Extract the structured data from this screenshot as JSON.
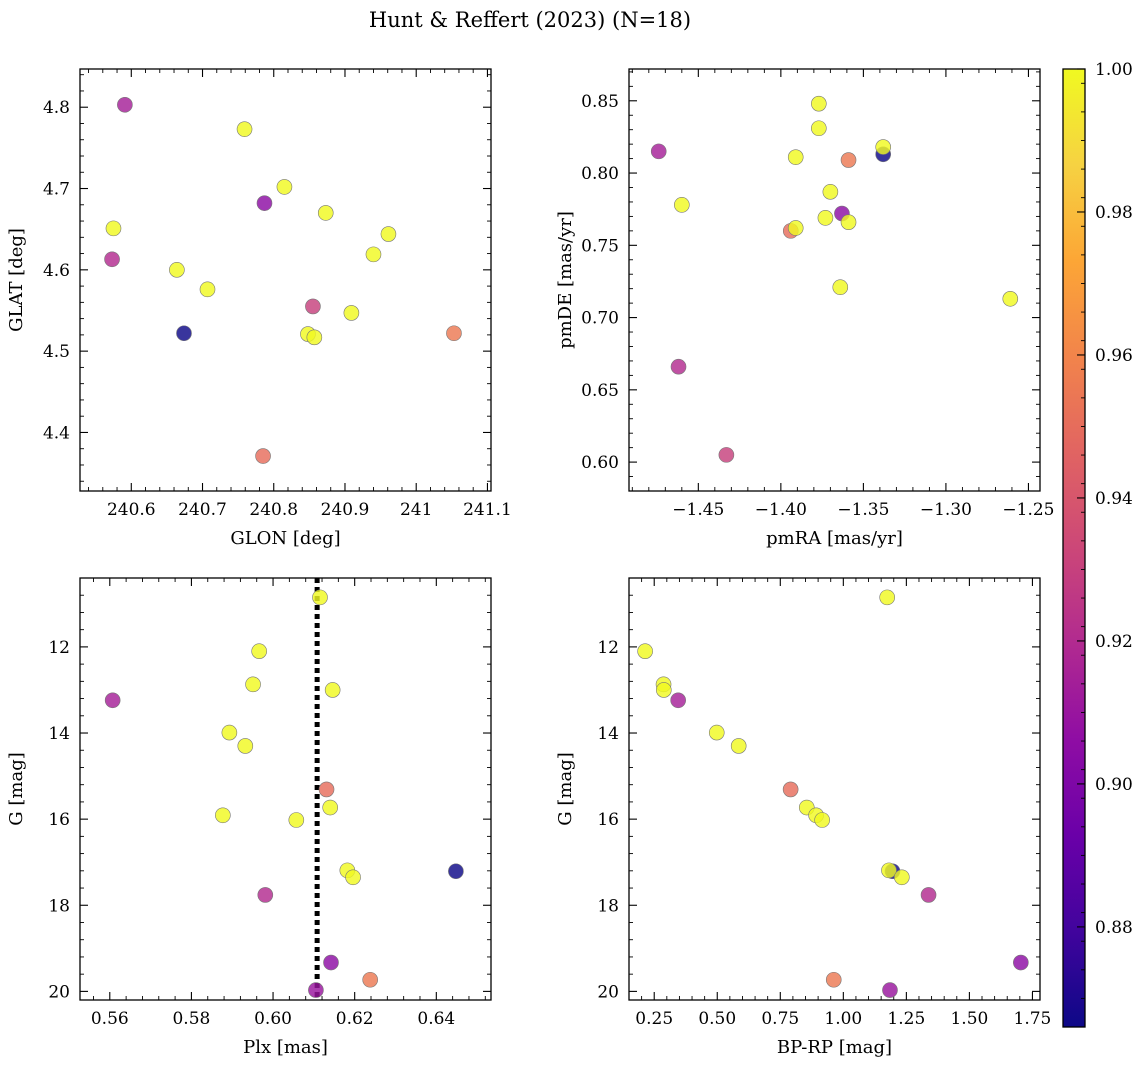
{
  "figure": {
    "title": "Hunt & Reffert (2023) (N=18)"
  },
  "colormap": {
    "name": "plasma",
    "range": [
      0.866,
      1.0
    ],
    "ticks": [
      0.88,
      0.9,
      0.92,
      0.94,
      0.96,
      0.98,
      1.0
    ]
  },
  "chart_data": [
    {
      "type": "scatter",
      "xlabel": "GLON [deg]",
      "ylabel": "GLAT [deg]",
      "xlim": [
        240.528,
        241.105
      ],
      "ylim": [
        4.328,
        4.847
      ],
      "y_inverted": false,
      "xticks": [
        240.6,
        240.7,
        240.8,
        240.9,
        241.0,
        241.1
      ],
      "yticks": [
        4.4,
        4.5,
        4.6,
        4.7,
        4.8
      ],
      "points": [
        {
          "x": 240.591,
          "y": 4.803,
          "c": 0.915
        },
        {
          "x": 240.575,
          "y": 4.651,
          "c": 1.0
        },
        {
          "x": 240.573,
          "y": 4.613,
          "c": 0.92
        },
        {
          "x": 240.664,
          "y": 4.6,
          "c": 1.0
        },
        {
          "x": 240.674,
          "y": 4.522,
          "c": 0.866
        },
        {
          "x": 240.707,
          "y": 4.576,
          "c": 1.0
        },
        {
          "x": 240.759,
          "y": 4.773,
          "c": 1.0
        },
        {
          "x": 240.787,
          "y": 4.682,
          "c": 0.905
        },
        {
          "x": 240.785,
          "y": 4.371,
          "c": 0.95
        },
        {
          "x": 240.815,
          "y": 4.702,
          "c": 1.0
        },
        {
          "x": 240.873,
          "y": 4.67,
          "c": 1.0
        },
        {
          "x": 240.855,
          "y": 4.555,
          "c": 0.93
        },
        {
          "x": 240.848,
          "y": 4.521,
          "c": 1.0
        },
        {
          "x": 240.857,
          "y": 4.517,
          "c": 1.0
        },
        {
          "x": 240.909,
          "y": 4.547,
          "c": 1.0
        },
        {
          "x": 240.94,
          "y": 4.619,
          "c": 1.0
        },
        {
          "x": 240.961,
          "y": 4.644,
          "c": 1.0
        },
        {
          "x": 241.053,
          "y": 4.522,
          "c": 0.955
        }
      ]
    },
    {
      "type": "scatter",
      "xlabel": "pmRA [mas/yr]",
      "ylabel": "pmDE [mas/yr]",
      "xlim": [
        -1.492,
        -1.243
      ],
      "ylim": [
        0.58,
        0.872
      ],
      "y_inverted": false,
      "xticks": [
        -1.45,
        -1.4,
        -1.35,
        -1.3,
        -1.25
      ],
      "xtick_labels": [
        "−1.45",
        "−1.40",
        "−1.35",
        "−1.30",
        "−1.25"
      ],
      "yticks": [
        0.6,
        0.65,
        0.7,
        0.75,
        0.8,
        0.85
      ],
      "ytick_labels": [
        "0.60",
        "0.65",
        "0.70",
        "0.75",
        "0.80",
        "0.85"
      ],
      "points": [
        {
          "x": -1.474,
          "y": 0.815,
          "c": 0.915
        },
        {
          "x": -1.46,
          "y": 0.778,
          "c": 1.0
        },
        {
          "x": -1.462,
          "y": 0.666,
          "c": 0.92
        },
        {
          "x": -1.433,
          "y": 0.605,
          "c": 0.93
        },
        {
          "x": -1.394,
          "y": 0.76,
          "c": 0.95
        },
        {
          "x": -1.391,
          "y": 0.811,
          "c": 1.0
        },
        {
          "x": -1.391,
          "y": 0.762,
          "c": 1.0
        },
        {
          "x": -1.377,
          "y": 0.848,
          "c": 1.0
        },
        {
          "x": -1.377,
          "y": 0.831,
          "c": 1.0
        },
        {
          "x": -1.373,
          "y": 0.769,
          "c": 1.0
        },
        {
          "x": -1.37,
          "y": 0.787,
          "c": 1.0
        },
        {
          "x": -1.364,
          "y": 0.721,
          "c": 1.0
        },
        {
          "x": -1.363,
          "y": 0.772,
          "c": 0.905
        },
        {
          "x": -1.359,
          "y": 0.766,
          "c": 1.0
        },
        {
          "x": -1.359,
          "y": 0.809,
          "c": 0.955
        },
        {
          "x": -1.338,
          "y": 0.813,
          "c": 0.866
        },
        {
          "x": -1.338,
          "y": 0.818,
          "c": 1.0
        },
        {
          "x": -1.261,
          "y": 0.713,
          "c": 1.0
        }
      ]
    },
    {
      "type": "scatter",
      "xlabel": "Plx [mas]",
      "ylabel": "G [mag]",
      "xlim": [
        0.5527,
        0.6534
      ],
      "ylim": [
        10.4,
        20.2
      ],
      "y_inverted": true,
      "xticks": [
        0.56,
        0.58,
        0.6,
        0.62,
        0.64
      ],
      "xtick_labels": [
        "0.56",
        "0.58",
        "0.60",
        "0.62",
        "0.64"
      ],
      "yticks": [
        12,
        14,
        16,
        18,
        20
      ],
      "vline": {
        "x": 0.6108,
        "style": "dotted",
        "color": "#000000"
      },
      "points": [
        {
          "x": 0.6115,
          "y": 10.85,
          "c": 1.0
        },
        {
          "x": 0.5966,
          "y": 12.1,
          "c": 1.0
        },
        {
          "x": 0.5951,
          "y": 12.87,
          "c": 1.0
        },
        {
          "x": 0.6146,
          "y": 13.0,
          "c": 1.0
        },
        {
          "x": 0.5607,
          "y": 13.24,
          "c": 0.915
        },
        {
          "x": 0.5893,
          "y": 13.99,
          "c": 1.0
        },
        {
          "x": 0.5932,
          "y": 14.3,
          "c": 1.0
        },
        {
          "x": 0.6131,
          "y": 15.31,
          "c": 0.95
        },
        {
          "x": 0.614,
          "y": 15.73,
          "c": 1.0
        },
        {
          "x": 0.5877,
          "y": 15.91,
          "c": 1.0
        },
        {
          "x": 0.6057,
          "y": 16.02,
          "c": 1.0
        },
        {
          "x": 0.6182,
          "y": 17.19,
          "c": 1.0
        },
        {
          "x": 0.6448,
          "y": 17.21,
          "c": 0.866
        },
        {
          "x": 0.6196,
          "y": 17.35,
          "c": 1.0
        },
        {
          "x": 0.5981,
          "y": 17.76,
          "c": 0.92
        },
        {
          "x": 0.6142,
          "y": 19.33,
          "c": 0.905
        },
        {
          "x": 0.6238,
          "y": 19.73,
          "c": 0.955
        },
        {
          "x": 0.6105,
          "y": 19.97,
          "c": 0.91
        }
      ]
    },
    {
      "type": "scatter",
      "xlabel": "BP-RP [mag]",
      "ylabel": "G [mag]",
      "xlim": [
        0.15,
        1.78
      ],
      "ylim": [
        10.4,
        20.2
      ],
      "y_inverted": true,
      "xticks": [
        0.25,
        0.5,
        0.75,
        1.0,
        1.25,
        1.5,
        1.75
      ],
      "xtick_labels": [
        "0.25",
        "0.50",
        "0.75",
        "1.00",
        "1.25",
        "1.50",
        "1.75"
      ],
      "yticks": [
        12,
        14,
        16,
        18,
        20
      ],
      "points": [
        {
          "x": 1.174,
          "y": 10.85,
          "c": 1.0
        },
        {
          "x": 0.214,
          "y": 12.1,
          "c": 1.0
        },
        {
          "x": 0.287,
          "y": 12.87,
          "c": 1.0
        },
        {
          "x": 0.288,
          "y": 13.0,
          "c": 1.0
        },
        {
          "x": 0.345,
          "y": 13.24,
          "c": 0.915
        },
        {
          "x": 0.498,
          "y": 13.99,
          "c": 1.0
        },
        {
          "x": 0.585,
          "y": 14.3,
          "c": 1.0
        },
        {
          "x": 0.791,
          "y": 15.31,
          "c": 0.95
        },
        {
          "x": 0.855,
          "y": 15.73,
          "c": 1.0
        },
        {
          "x": 0.892,
          "y": 15.91,
          "c": 1.0
        },
        {
          "x": 0.916,
          "y": 16.02,
          "c": 1.0
        },
        {
          "x": 1.195,
          "y": 17.21,
          "c": 0.866
        },
        {
          "x": 1.181,
          "y": 17.19,
          "c": 1.0
        },
        {
          "x": 1.232,
          "y": 17.35,
          "c": 1.0
        },
        {
          "x": 1.338,
          "y": 17.76,
          "c": 0.92
        },
        {
          "x": 1.704,
          "y": 19.33,
          "c": 0.905
        },
        {
          "x": 0.962,
          "y": 19.73,
          "c": 0.955
        },
        {
          "x": 1.185,
          "y": 19.97,
          "c": 0.91
        }
      ]
    }
  ]
}
